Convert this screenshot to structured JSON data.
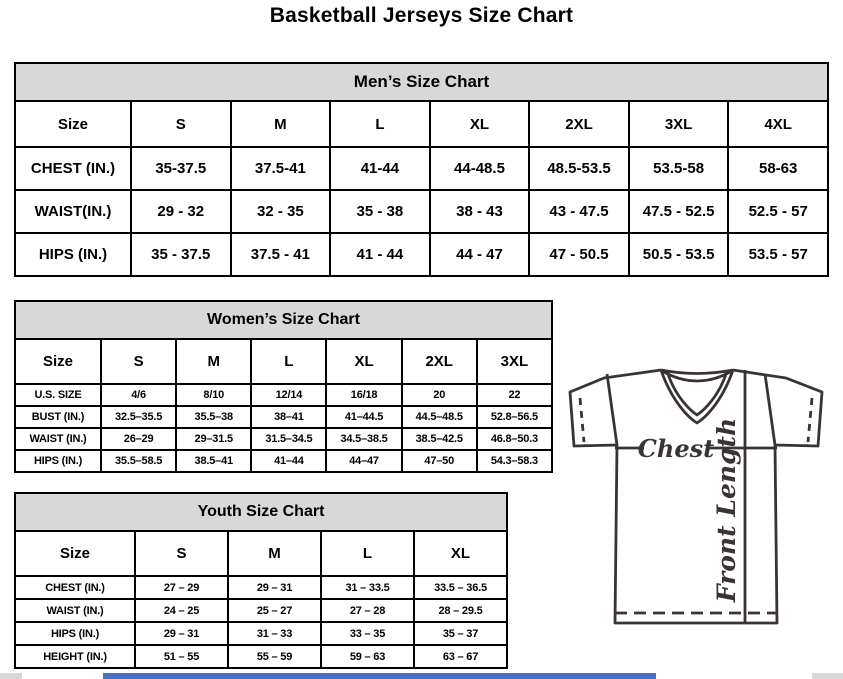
{
  "page": {
    "title": "Basketball Jerseys Size Chart"
  },
  "charts": {
    "men": {
      "title": "Men’s Size Chart",
      "columns": [
        "Size",
        "S",
        "M",
        "L",
        "XL",
        "2XL",
        "3XL",
        "4XL"
      ],
      "rows": [
        {
          "label": "CHEST (IN.)",
          "values": [
            "35-37.5",
            "37.5-41",
            "41-44",
            "44-48.5",
            "48.5-53.5",
            "53.5-58",
            "58-63"
          ]
        },
        {
          "label": "WAIST(IN.)",
          "values": [
            "29 - 32",
            "32 - 35",
            "35 - 38",
            "38 - 43",
            "43 - 47.5",
            "47.5 - 52.5",
            "52.5 - 57"
          ]
        },
        {
          "label": "HIPS (IN.)",
          "values": [
            "35 - 37.5",
            "37.5 - 41",
            "41 - 44",
            "44 - 47",
            "47 - 50.5",
            "50.5 - 53.5",
            "53.5 - 57"
          ]
        }
      ]
    },
    "women": {
      "title": "Women’s Size Chart",
      "columns": [
        "Size",
        "S",
        "M",
        "L",
        "XL",
        "2XL",
        "3XL"
      ],
      "rows": [
        {
          "label": "U.S. SIZE",
          "values": [
            "4/6",
            "8/10",
            "12/14",
            "16/18",
            "20",
            "22"
          ]
        },
        {
          "label": "BUST (IN.)",
          "values": [
            "32.5–35.5",
            "35.5–38",
            "38–41",
            "41–44.5",
            "44.5–48.5",
            "52.8–56.5"
          ]
        },
        {
          "label": "WAIST (IN.)",
          "values": [
            "26–29",
            "29–31.5",
            "31.5–34.5",
            "34.5–38.5",
            "38.5–42.5",
            "46.8–50.3"
          ]
        },
        {
          "label": "HIPS (IN.)",
          "values": [
            "35.5–58.5",
            "38.5–41",
            "41–44",
            "44–47",
            "47–50",
            "54.3–58.3"
          ]
        }
      ]
    },
    "youth": {
      "title": "Youth Size Chart",
      "columns": [
        "Size",
        "S",
        "M",
        "L",
        "XL"
      ],
      "rows": [
        {
          "label": "CHEST (IN.)",
          "values": [
            "27 – 29",
            "29 – 31",
            "31 – 33.5",
            "33.5 – 36.5"
          ]
        },
        {
          "label": "WAIST (IN.)",
          "values": [
            "24 – 25",
            "25 – 27",
            "27 – 28",
            "28 – 29.5"
          ]
        },
        {
          "label": "HIPS (IN.)",
          "values": [
            "29 – 31",
            "31 – 33",
            "33 – 35",
            "35 – 37"
          ]
        },
        {
          "label": "HEIGHT (IN.)",
          "values": [
            "51 – 55",
            "55 – 59",
            "59 – 63",
            "63 – 67"
          ]
        }
      ]
    }
  },
  "diagram": {
    "chest_label": "Chest",
    "front_length_label": "Front Length"
  },
  "colors": {
    "header_bg": "#d8d8d8",
    "border": "#000000",
    "diagram_stroke": "#3a3335",
    "scrollbar_thumb": "#4472c4",
    "scrollbar_track": "#d9d9d9"
  }
}
